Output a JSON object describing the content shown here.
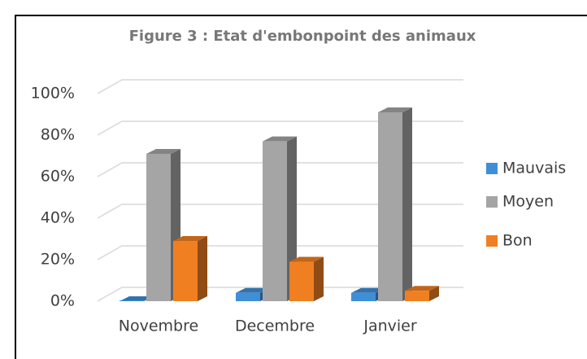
{
  "chart_data": {
    "type": "bar3d",
    "title": "Figure 3 : Etat d'embonpoint des animaux",
    "categories": [
      "Novembre",
      "Decembre",
      "Janvier"
    ],
    "series": [
      {
        "name": "Mauvais",
        "color": "#3f8fd8",
        "values": [
          0,
          4,
          4
        ]
      },
      {
        "name": "Moyen",
        "color": "#a5a5a5",
        "values": [
          71,
          77,
          91
        ]
      },
      {
        "name": "Bon",
        "color": "#f07f22",
        "values": [
          29,
          19,
          5
        ]
      }
    ],
    "ylim": [
      0,
      100
    ],
    "yticks": [
      {
        "value": 0,
        "label": "0%"
      },
      {
        "value": 20,
        "label": "20%"
      },
      {
        "value": 40,
        "label": "40%"
      },
      {
        "value": 60,
        "label": "60%"
      },
      {
        "value": 80,
        "label": "80%"
      },
      {
        "value": 100,
        "label": "100%"
      }
    ],
    "grid": true,
    "legend": "right"
  }
}
